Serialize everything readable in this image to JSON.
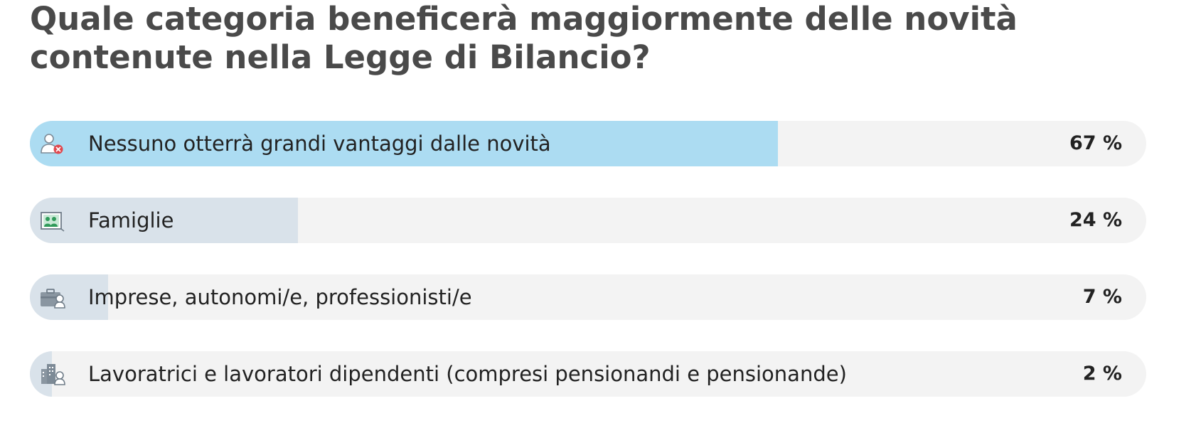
{
  "chart_data": {
    "type": "bar",
    "title": "Quale categoria beneficerà maggiormente delle novità contenute nella Legge di Bilancio?",
    "unit": "%",
    "xlim": [
      0,
      100
    ],
    "categories": [
      "Nessuno otterrà grandi vantaggi dalle novità",
      "Famiglie",
      "Imprese, autonomi/e, professionisti/e",
      "Lavoratrici e lavoratori dipendenti (compresi pensionandi e pensionande)"
    ],
    "values": [
      67,
      24,
      7,
      2
    ],
    "value_labels": [
      "67 %",
      "24 %",
      "7 %",
      "2 %"
    ],
    "icons": [
      "user-x-icon",
      "family-picture-icon",
      "briefcase-person-icon",
      "office-building-person-icon"
    ],
    "colors": {
      "winner_fill": "#acdcf2",
      "other_fill": "#d9e2ea",
      "track": "#f3f3f3"
    }
  }
}
